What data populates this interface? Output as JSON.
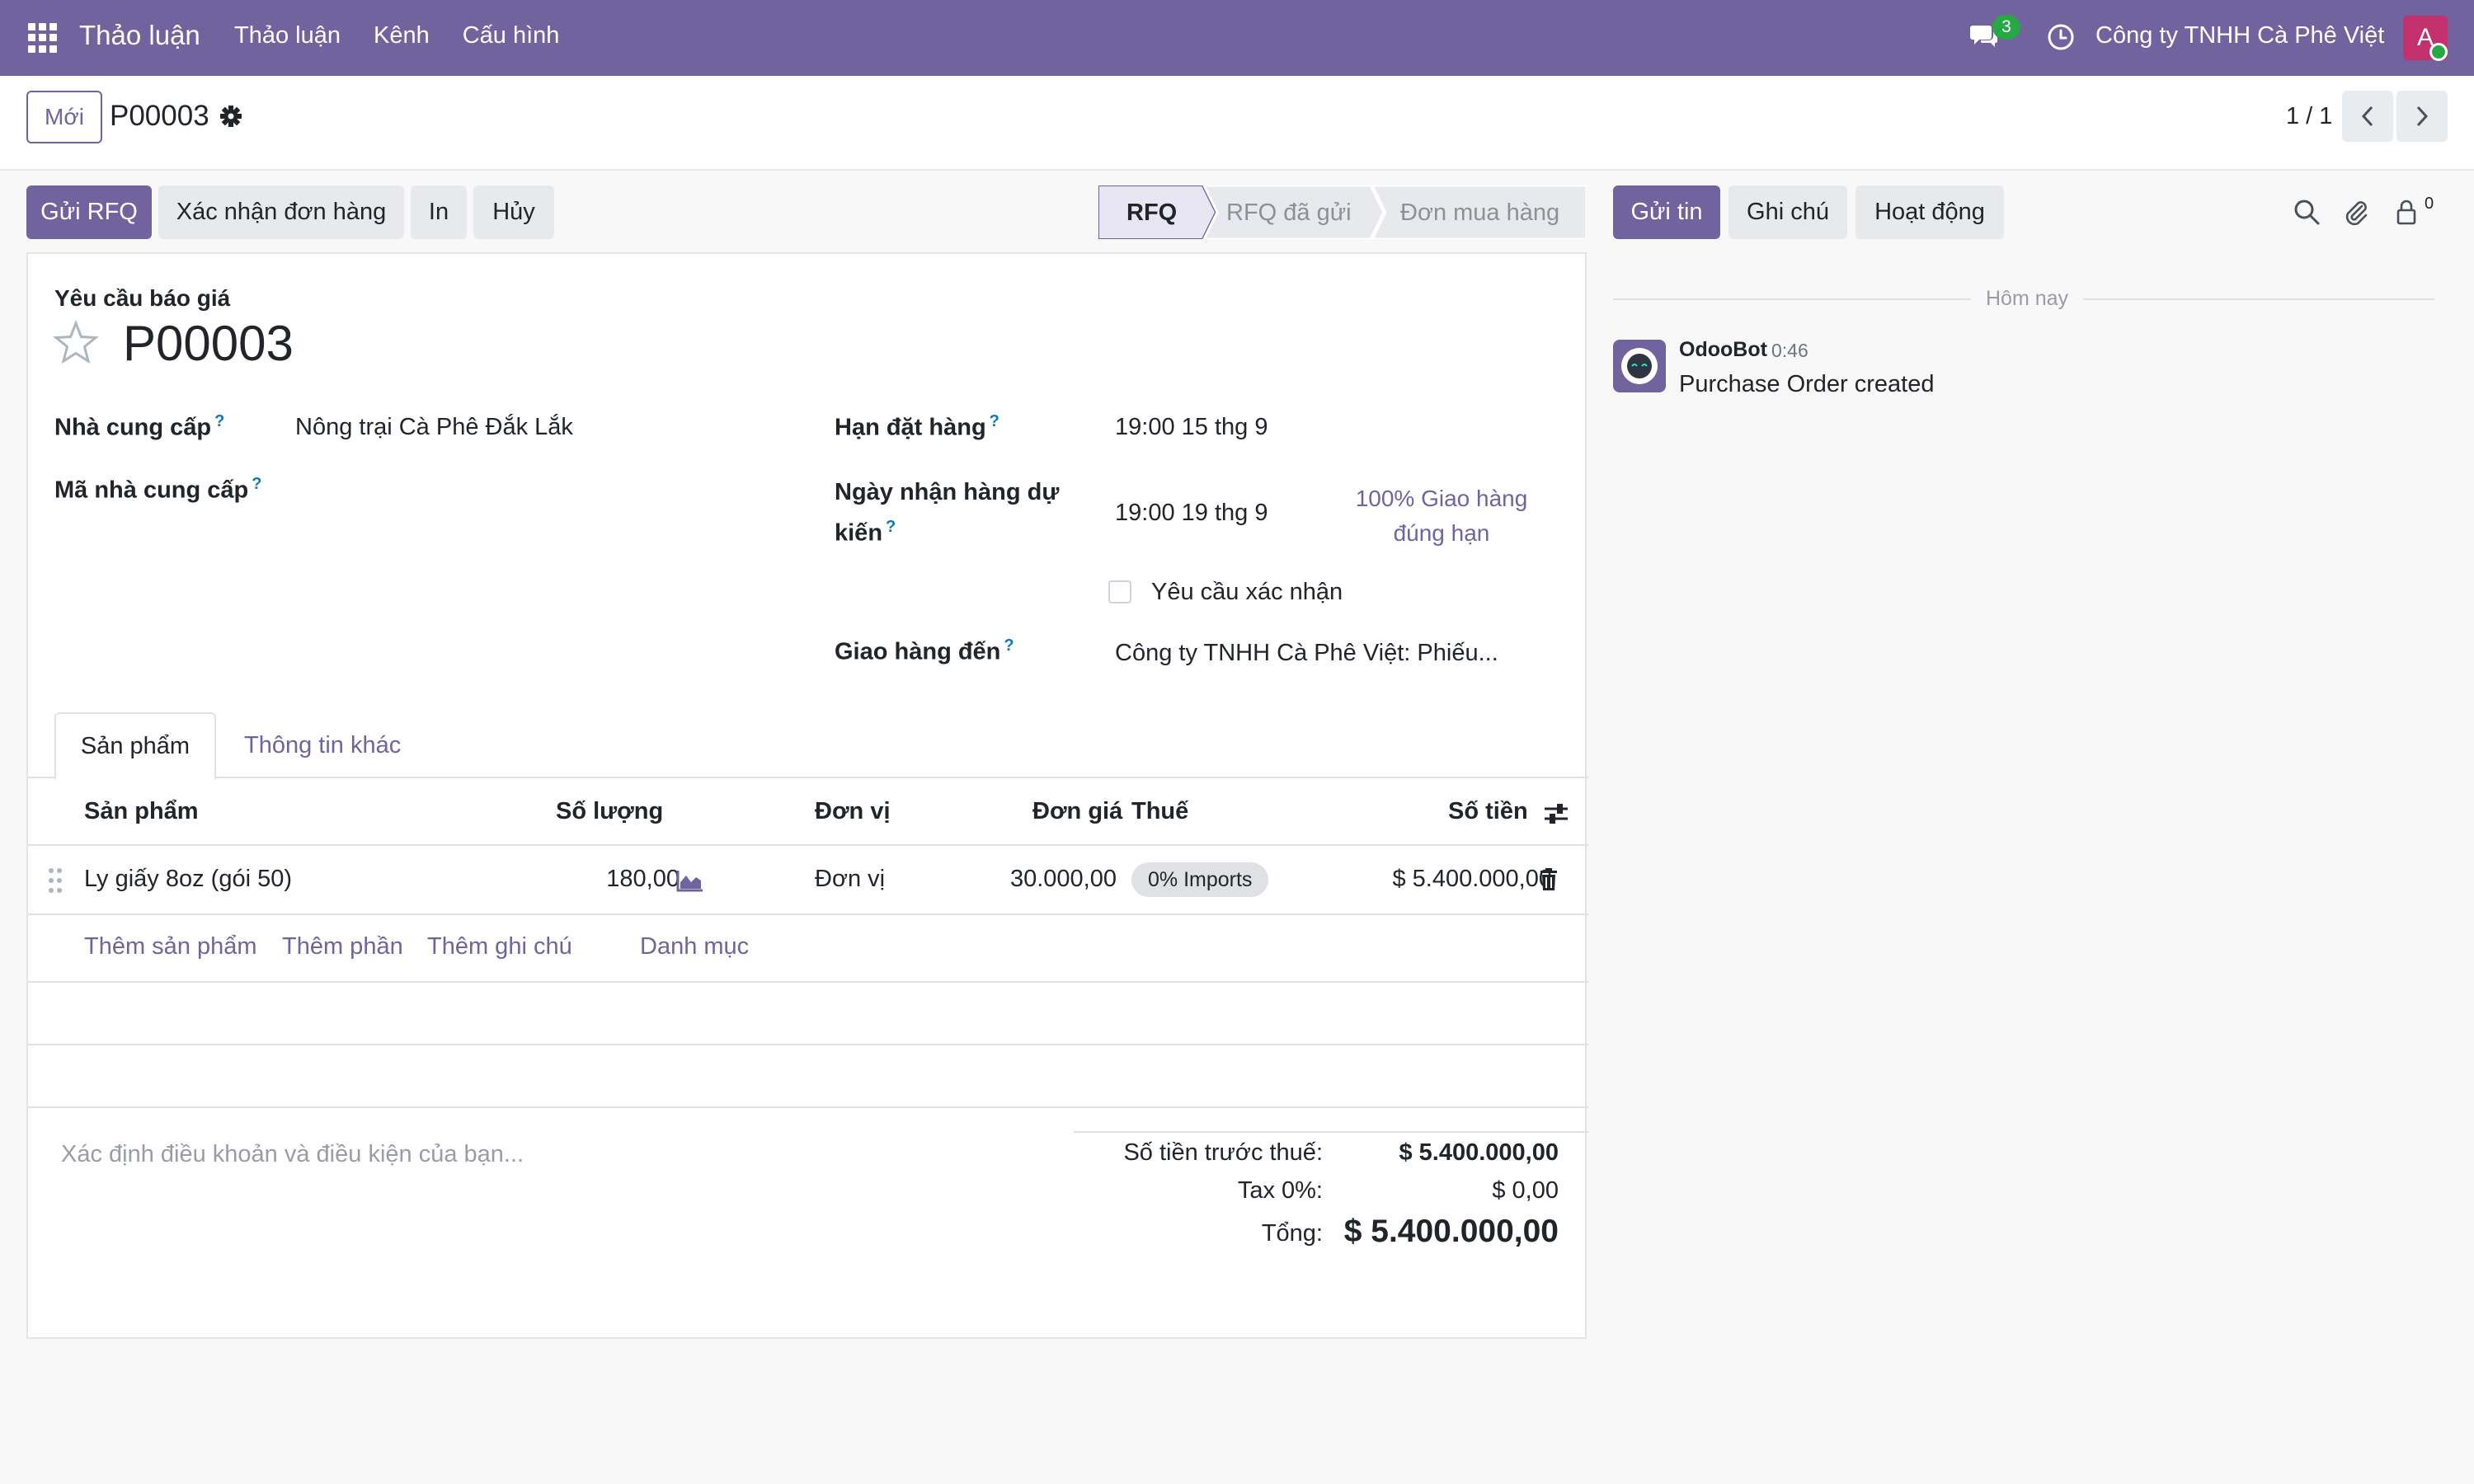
{
  "navbar": {
    "app_name": "Thảo luận",
    "menu": [
      "Thảo luận",
      "Kênh",
      "Cấu hình"
    ],
    "chat_badge": "3",
    "company": "Công ty TNHH Cà Phê Việt",
    "avatar_letter": "A"
  },
  "control_panel": {
    "new_label": "Mới",
    "record_name": "P00003",
    "pager": "1 / 1"
  },
  "actions": {
    "send_rfq": "Gửi RFQ",
    "confirm_order": "Xác nhận đơn hàng",
    "print": "In",
    "cancel": "Hủy"
  },
  "statusbar": {
    "stages": [
      "RFQ",
      "RFQ đã gửi",
      "Đơn mua hàng"
    ],
    "active": "RFQ"
  },
  "form": {
    "subtitle": "Yêu cầu báo giá",
    "title": "P00003",
    "vendor_label": "Nhà cung cấp",
    "vendor_value": "Nông trại Cà Phê Đắk Lắk",
    "vendor_ref_label": "Mã nhà cung cấp",
    "order_deadline_label": "Hạn đặt hàng",
    "order_deadline_value": "19:00 15 thg 9",
    "expected_arrival_label_1": "Ngày nhận hàng dự",
    "expected_arrival_label_2": "kiến",
    "expected_arrival_value": "19:00 19 thg 9",
    "on_time_line1": "100% Giao hàng",
    "on_time_line2": "đúng hạn",
    "ask_confirm_label": "Yêu cầu xác nhận",
    "deliver_to_label": "Giao hàng đến",
    "deliver_to_value": "Công ty TNHH Cà Phê Việt: Phiếu...",
    "help_mark": "?"
  },
  "tabs": {
    "products": "Sản phẩm",
    "other_info": "Thông tin khác"
  },
  "table": {
    "headers": {
      "product": "Sản phẩm",
      "qty": "Số lượng",
      "uom": "Đơn vị",
      "price": "Đơn giá",
      "tax": "Thuế",
      "subtotal": "Số tiền"
    },
    "rows": [
      {
        "product": "Ly giấy 8oz (gói 50)",
        "qty": "180,00",
        "uom": "Đơn vị",
        "price": "30.000,00",
        "tax": "0% Imports",
        "subtotal": "$ 5.400.000,00"
      }
    ],
    "add_product": "Thêm sản phẩm",
    "add_section": "Thêm phần",
    "add_note": "Thêm ghi chú",
    "catalog": "Danh mục"
  },
  "notes_placeholder": "Xác định điều khoản và điều kiện của bạn...",
  "totals": {
    "untaxed_label": "Số tiền trước thuế:",
    "untaxed_value": "$ 5.400.000,00",
    "tax_label": "Tax 0%:",
    "tax_value": "$ 0,00",
    "total_label": "Tổng:",
    "total_value": "$ 5.400.000,00"
  },
  "chatter": {
    "send_message": "Gửi tin",
    "log_note": "Ghi chú",
    "activities": "Hoạt động",
    "follower_count": "0",
    "date_separator": "Hôm nay",
    "messages": [
      {
        "author": "OdooBot",
        "time": "0:46",
        "body": "Purchase Order created"
      }
    ]
  },
  "colors": {
    "brand": "#71639e",
    "badge_green": "#28a745",
    "avatar": "#c2306d"
  }
}
